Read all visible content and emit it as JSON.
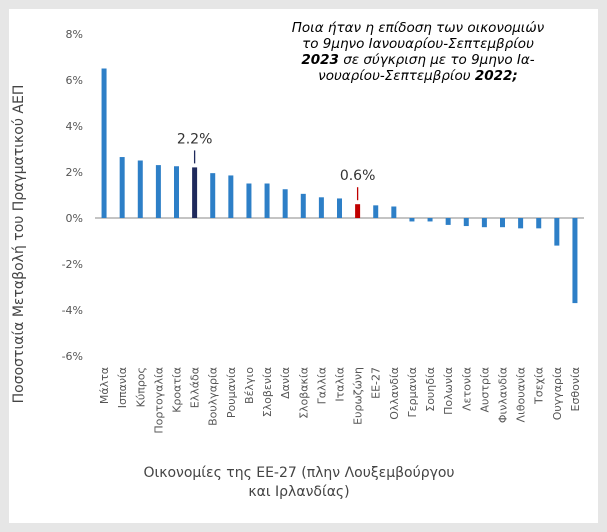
{
  "title": {
    "line1": "Ποια ήταν η επίδοση των οικονομιών",
    "line2": "το 9μηνο Ιανουαρίου-Σεπτεμβρίου",
    "line3_year": "2023",
    "line3_rest": " σε σύγκριση με το 9μηνο Ια-",
    "line4_rest": "νουαρίου-Σεπτεμβρίου ",
    "line4_year": "2022;"
  },
  "chart_data": {
    "type": "bar",
    "ylabel": "Ποσοστιαία Μεταβολή του Πραγματικού ΑΕΠ",
    "xlabel": "Οικονομίες της ΕΕ-27 (πλην Λουξεμβούργου και Ιρλανδίας)",
    "ylim": [
      -6,
      8
    ],
    "ytick_labels": [
      "8%",
      "6%",
      "4%",
      "2%",
      "0%",
      "-2%",
      "-4%",
      "-6%"
    ],
    "ytick_values": [
      8,
      6,
      4,
      2,
      0,
      -2,
      -4,
      -6
    ],
    "grid": false,
    "categories": [
      "Μάλτα",
      "Ισπανία",
      "Κύπρος",
      "Πορτογαλία",
      "Κροατία",
      "Ελλάδα",
      "Βουλγαρία",
      "Ρουμανία",
      "Βέλγιο",
      "Σλοβενία",
      "Δανία",
      "Σλοβακία",
      "Γαλλία",
      "Ιταλία",
      "Ευρωζώνη",
      "ΕΕ-27",
      "Ολλανδία",
      "Γερμανία",
      "Σουηδία",
      "Πολωνία",
      "Λετονία",
      "Αυστρία",
      "Φινλανδία",
      "Λιθουανία",
      "Τσεχία",
      "Ουγγαρία",
      "Εσθονία"
    ],
    "values": [
      6.5,
      2.65,
      2.5,
      2.3,
      2.25,
      2.2,
      1.95,
      1.85,
      1.5,
      1.5,
      1.25,
      1.05,
      0.9,
      0.85,
      0.6,
      0.55,
      0.5,
      -0.15,
      -0.15,
      -0.3,
      -0.35,
      -0.4,
      -0.4,
      -0.45,
      -0.45,
      -1.2,
      -3.7
    ],
    "highlights": [
      {
        "category": "Ελλάδα",
        "label": "2.2%",
        "color": "#1f2a5c"
      },
      {
        "category": "Ευρωζώνη",
        "label": "0.6%",
        "color": "#c00000"
      }
    ],
    "colors": {
      "bar": "#2d7fc7",
      "axis": "#888888",
      "tick_text": "#555555",
      "label_text": "#333333"
    }
  }
}
